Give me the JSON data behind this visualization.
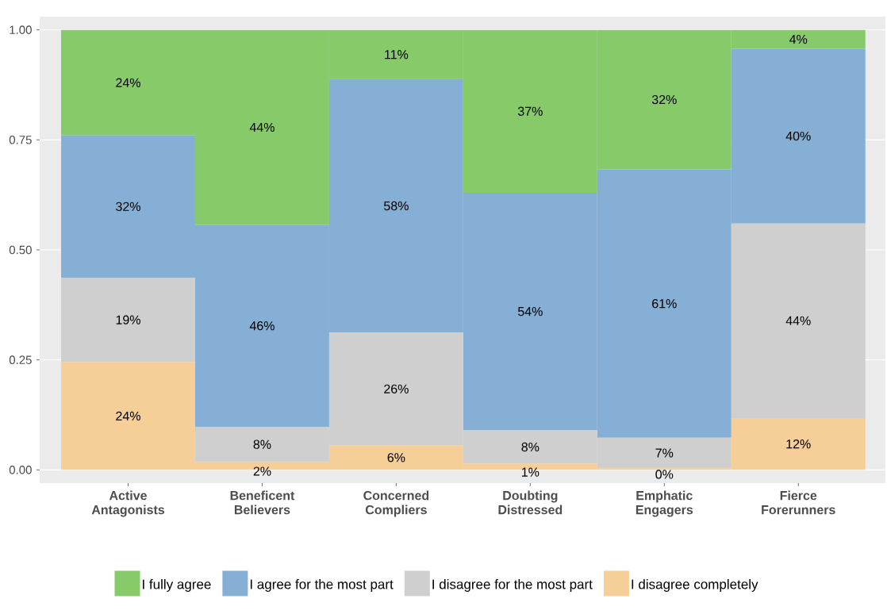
{
  "chart_data": {
    "type": "bar",
    "stacked": true,
    "categories": [
      "Active Antagonists",
      "Beneficent Believers",
      "Concerned Compliers",
      "Doubting Distressed",
      "Emphatic Engagers",
      "Fierce Forerunners"
    ],
    "series": [
      {
        "name": "I disagree completely",
        "color": "#f5cf97",
        "values": [
          0.245,
          0.018,
          0.056,
          0.014,
          0.004,
          0.118
        ],
        "value_labels": [
          "24%",
          "2%",
          "6%",
          "1%",
          "0%",
          "12%"
        ]
      },
      {
        "name": "I disagree for the most part",
        "color": "#d0cfd0",
        "values": [
          0.192,
          0.08,
          0.256,
          0.076,
          0.069,
          0.442
        ],
        "value_labels": [
          "19%",
          "8%",
          "26%",
          "8%",
          "7%",
          "44%"
        ]
      },
      {
        "name": "I agree for the most part",
        "color": "#85afd4",
        "values": [
          0.323,
          0.459,
          0.576,
          0.54,
          0.61,
          0.397
        ],
        "value_labels": [
          "32%",
          "46%",
          "58%",
          "54%",
          "61%",
          "40%"
        ]
      },
      {
        "name": "I fully agree",
        "color": "#87ca6a",
        "values": [
          0.24,
          0.443,
          0.112,
          0.37,
          0.317,
          0.043
        ],
        "value_labels": [
          "24%",
          "44%",
          "11%",
          "37%",
          "32%",
          "4%"
        ]
      }
    ],
    "ylim": [
      -0.03,
      1.03
    ],
    "yticks": [
      {
        "value": 0,
        "label": "0.00"
      },
      {
        "value": 0.25,
        "label": "0.25"
      },
      {
        "value": 0.5,
        "label": "0.50"
      },
      {
        "value": 0.75,
        "label": "0.75"
      },
      {
        "value": 1,
        "label": "1.00"
      }
    ],
    "grid": "y",
    "legend": "bottom"
  }
}
